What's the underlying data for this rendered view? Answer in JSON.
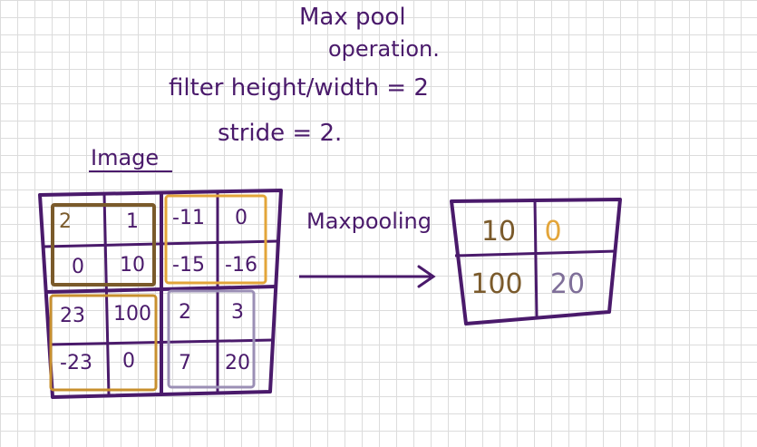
{
  "title": {
    "line1": "Max pool",
    "line2": "operation."
  },
  "params": {
    "filter": "filter height/width = 2",
    "stride": "stride  = 2."
  },
  "input_label": "Image",
  "op_label": "Maxpooling",
  "input_grid": [
    [
      "2",
      "1",
      "-11",
      "0"
    ],
    [
      "0",
      "10",
      "-15",
      "-16"
    ],
    [
      "23",
      "100",
      "2",
      "3"
    ],
    [
      "-23",
      "0",
      "7",
      "20"
    ]
  ],
  "output_grid": [
    [
      "10",
      "0"
    ],
    [
      "100",
      "20"
    ]
  ],
  "colors": {
    "ink": "#4a1a6b",
    "window_top_left": "#7a5a2b",
    "window_top_right": "#e3a53a",
    "window_bottom_left": "#c8902f",
    "window_bottom_right": "#9b8fb5"
  }
}
